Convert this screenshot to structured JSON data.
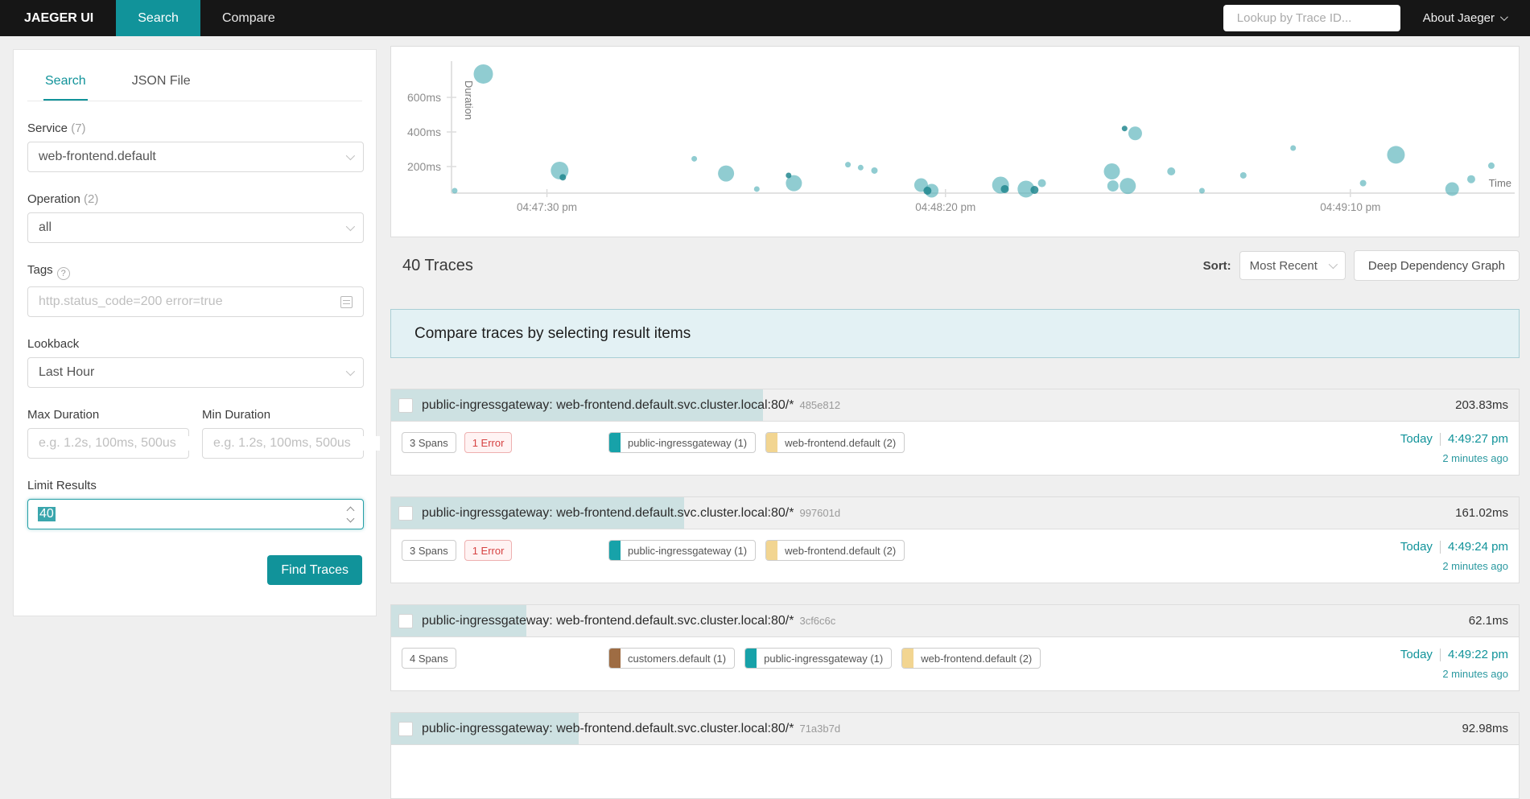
{
  "navbar": {
    "brand": "JAEGER UI",
    "tabs": [
      {
        "label": "Search",
        "active": true
      },
      {
        "label": "Compare",
        "active": false
      }
    ],
    "lookup_placeholder": "Lookup by Trace ID...",
    "about_label": "About Jaeger"
  },
  "panel": {
    "tabs": [
      {
        "label": "Search",
        "active": true
      },
      {
        "label": "JSON File",
        "active": false
      }
    ],
    "service": {
      "label": "Service",
      "count": "(7)",
      "value": "web-frontend.default"
    },
    "operation": {
      "label": "Operation",
      "count": "(2)",
      "value": "all"
    },
    "tags": {
      "label": "Tags",
      "help": "?",
      "placeholder": "http.status_code=200 error=true"
    },
    "lookback": {
      "label": "Lookback",
      "value": "Last Hour"
    },
    "max_duration": {
      "label": "Max Duration",
      "placeholder": "e.g. 1.2s, 100ms, 500us"
    },
    "min_duration": {
      "label": "Min Duration",
      "placeholder": "e.g. 1.2s, 100ms, 500us"
    },
    "limit": {
      "label": "Limit Results",
      "value": "40"
    },
    "find_button": "Find Traces"
  },
  "chart_data": {
    "type": "scatter",
    "xlabel": "Time",
    "ylabel": "Duration",
    "x_ticks": [
      "04:47:30 pm",
      "04:48:20 pm",
      "04:49:10 pm"
    ],
    "x_tick_pct": [
      9.0,
      46.6,
      84.8
    ],
    "y_ticks": [
      "600ms",
      "400ms",
      "200ms"
    ],
    "y_tick_values": [
      600,
      400,
      200
    ],
    "ylim": [
      0,
      780
    ],
    "point_color": "#57b1b9",
    "point_color_dark": "#22878f",
    "points": [
      {
        "x_pct": 3.0,
        "duration_ms": 735,
        "r": 12,
        "dark": false
      },
      {
        "x_pct": 0.3,
        "duration_ms": 37,
        "r": 3.5,
        "dark": false
      },
      {
        "x_pct": 10.2,
        "duration_ms": 177,
        "r": 11,
        "dark": false
      },
      {
        "x_pct": 10.5,
        "duration_ms": 138,
        "r": 4,
        "dark": true
      },
      {
        "x_pct": 22.9,
        "duration_ms": 245,
        "r": 3.5,
        "dark": false
      },
      {
        "x_pct": 25.9,
        "duration_ms": 160,
        "r": 10,
        "dark": false
      },
      {
        "x_pct": 28.8,
        "duration_ms": 70,
        "r": 3.5,
        "dark": false
      },
      {
        "x_pct": 31.8,
        "duration_ms": 149,
        "r": 3.5,
        "dark": true
      },
      {
        "x_pct": 32.3,
        "duration_ms": 104,
        "r": 10,
        "dark": false
      },
      {
        "x_pct": 37.4,
        "duration_ms": 211,
        "r": 3.5,
        "dark": false
      },
      {
        "x_pct": 38.6,
        "duration_ms": 194,
        "r": 3.5,
        "dark": false
      },
      {
        "x_pct": 39.9,
        "duration_ms": 177,
        "r": 4,
        "dark": false
      },
      {
        "x_pct": 44.3,
        "duration_ms": 93,
        "r": 8.5,
        "dark": false
      },
      {
        "x_pct": 44.9,
        "duration_ms": 53,
        "r": 5,
        "dark": true
      },
      {
        "x_pct": 45.3,
        "duration_ms": 31,
        "r": 8.5,
        "dark": false
      },
      {
        "x_pct": 51.8,
        "duration_ms": 93,
        "r": 10.5,
        "dark": false
      },
      {
        "x_pct": 52.2,
        "duration_ms": 70,
        "r": 5,
        "dark": true
      },
      {
        "x_pct": 54.2,
        "duration_ms": 70,
        "r": 10.5,
        "dark": false
      },
      {
        "x_pct": 55.0,
        "duration_ms": 65,
        "r": 5,
        "dark": true
      },
      {
        "x_pct": 55.7,
        "duration_ms": 104,
        "r": 5,
        "dark": false
      },
      {
        "x_pct": 62.3,
        "duration_ms": 172,
        "r": 10,
        "dark": false
      },
      {
        "x_pct": 62.4,
        "duration_ms": 88,
        "r": 7,
        "dark": false
      },
      {
        "x_pct": 63.8,
        "duration_ms": 88,
        "r": 10,
        "dark": false
      },
      {
        "x_pct": 63.5,
        "duration_ms": 420,
        "r": 3.5,
        "dark": true
      },
      {
        "x_pct": 64.5,
        "duration_ms": 392,
        "r": 8.5,
        "dark": false
      },
      {
        "x_pct": 67.9,
        "duration_ms": 172,
        "r": 5,
        "dark": false
      },
      {
        "x_pct": 70.8,
        "duration_ms": 37,
        "r": 3.5,
        "dark": false
      },
      {
        "x_pct": 74.7,
        "duration_ms": 149,
        "r": 4,
        "dark": false
      },
      {
        "x_pct": 79.4,
        "duration_ms": 307,
        "r": 3.5,
        "dark": false
      },
      {
        "x_pct": 86.0,
        "duration_ms": 104,
        "r": 4,
        "dark": false
      },
      {
        "x_pct": 89.1,
        "duration_ms": 268,
        "r": 11,
        "dark": false
      },
      {
        "x_pct": 94.4,
        "duration_ms": 70,
        "r": 8.5,
        "dark": false
      },
      {
        "x_pct": 96.2,
        "duration_ms": 127,
        "r": 5,
        "dark": false
      },
      {
        "x_pct": 98.1,
        "duration_ms": 205,
        "r": 4,
        "dark": false
      }
    ]
  },
  "results": {
    "count_title": "40 Traces",
    "sort_label": "Sort:",
    "sort_value": "Most Recent",
    "ddg_button": "Deep Dependency Graph",
    "banner": "Compare traces by selecting result items",
    "traces": [
      {
        "title": "public-ingressgateway: web-frontend.default.svc.cluster.local:80/*",
        "trace_id": "485e812",
        "duration": "203.83ms",
        "bar_pct": 33,
        "spans": "3 Spans",
        "errors": "1 Error",
        "services": [
          {
            "name": "public-ingressgateway (1)",
            "color": "#17a2a9"
          },
          {
            "name": "web-frontend.default (2)",
            "color": "#f2d591"
          }
        ],
        "day": "Today",
        "time": "4:49:27 pm",
        "relative": "2 minutes ago"
      },
      {
        "title": "public-ingressgateway: web-frontend.default.svc.cluster.local:80/*",
        "trace_id": "997601d",
        "duration": "161.02ms",
        "bar_pct": 26,
        "spans": "3 Spans",
        "errors": "1 Error",
        "services": [
          {
            "name": "public-ingressgateway (1)",
            "color": "#17a2a9"
          },
          {
            "name": "web-frontend.default (2)",
            "color": "#f2d591"
          }
        ],
        "day": "Today",
        "time": "4:49:24 pm",
        "relative": "2 minutes ago"
      },
      {
        "title": "public-ingressgateway: web-frontend.default.svc.cluster.local:80/*",
        "trace_id": "3cf6c6c",
        "duration": "62.1ms",
        "bar_pct": 12,
        "spans": "4 Spans",
        "errors": null,
        "services": [
          {
            "name": "customers.default (1)",
            "color": "#9e6c43"
          },
          {
            "name": "public-ingressgateway (1)",
            "color": "#17a2a9"
          },
          {
            "name": "web-frontend.default (2)",
            "color": "#f2d591"
          }
        ],
        "day": "Today",
        "time": "4:49:22 pm",
        "relative": "2 minutes ago"
      },
      {
        "title": "public-ingressgateway: web-frontend.default.svc.cluster.local:80/*",
        "trace_id": "71a3b7d",
        "duration": "92.98ms",
        "bar_pct": 16.6,
        "spans": null,
        "errors": null,
        "services": [],
        "day": "",
        "time": "",
        "relative": ""
      }
    ]
  }
}
